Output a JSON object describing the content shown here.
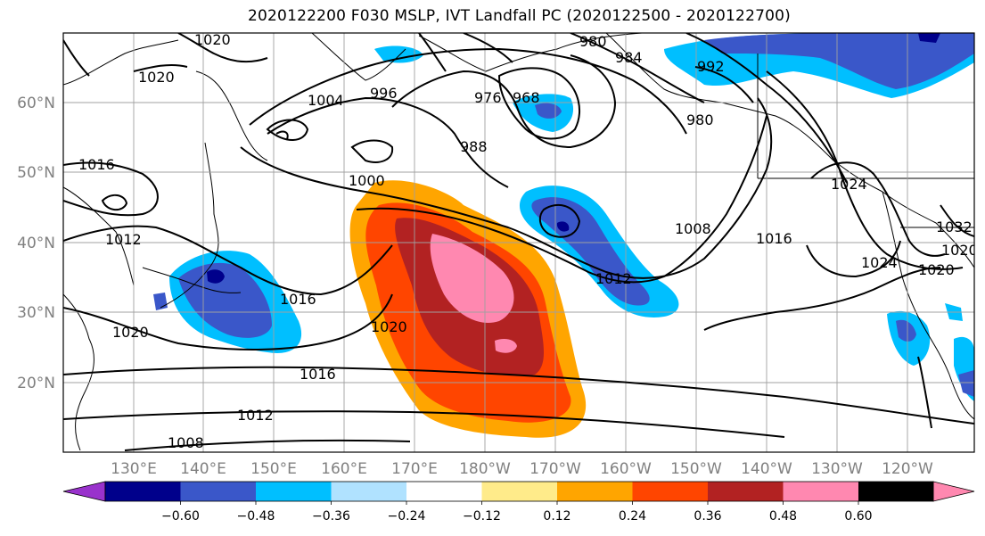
{
  "title": "2020122200 F030 MSLP, IVT Landfall PC (2020122500 - 2020122700)",
  "map": {
    "lat_labels": [
      "60°N",
      "50°N",
      "40°N",
      "30°N",
      "20°N"
    ],
    "lon_labels": [
      "130°E",
      "140°E",
      "150°E",
      "160°E",
      "170°E",
      "180°W",
      "170°W",
      "160°W",
      "150°W",
      "140°W",
      "130°W",
      "120°W"
    ],
    "contour_labels": [
      "1020",
      "1020",
      "1016",
      "1012",
      "1020",
      "1016",
      "1020",
      "1016",
      "1012",
      "1008",
      "1004",
      "996",
      "988",
      "980",
      "976",
      "968",
      "980",
      "984",
      "992",
      "1000",
      "1008",
      "1012",
      "1016",
      "1024",
      "1020",
      "1024",
      "1032",
      "1020"
    ]
  },
  "colorbar": {
    "tick_labels": [
      "−0.60",
      "−0.48",
      "−0.36",
      "−0.24",
      "−0.12",
      "0.12",
      "0.24",
      "0.36",
      "0.48",
      "0.60"
    ],
    "colors": [
      "#9932cc",
      "#00008b",
      "#3a57c9",
      "#00bfff",
      "#b0e2ff",
      "#ffffff",
      "#ffeb8a",
      "#ffa500",
      "#ff4500",
      "#b22222",
      "#ff88b0"
    ]
  }
}
